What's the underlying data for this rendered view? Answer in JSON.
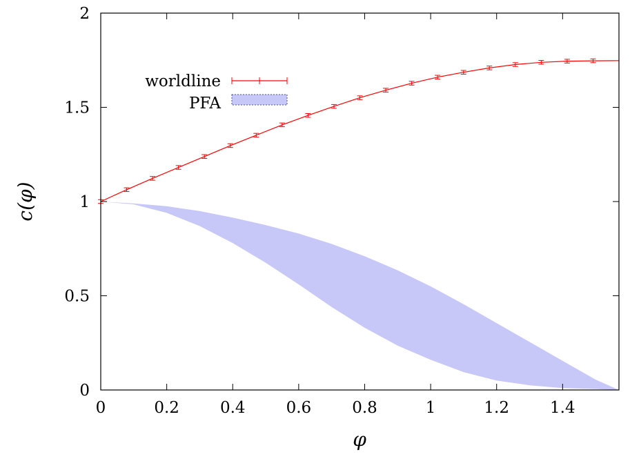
{
  "chart_data": {
    "type": "line",
    "xlabel": "φ",
    "ylabel": "c(φ)",
    "xlim": [
      0,
      1.5708
    ],
    "ylim": [
      0,
      2
    ],
    "xticks": [
      0,
      0.2,
      0.4,
      0.6,
      0.8,
      1,
      1.2,
      1.4
    ],
    "xtick_labels": [
      "0",
      "0.2",
      "0.4",
      "0.6",
      "0.8",
      "1",
      "1.2",
      "1.4"
    ],
    "yticks": [
      0,
      0.5,
      1,
      1.5,
      2
    ],
    "ytick_labels": [
      "0",
      "0.5",
      "1",
      "1.5",
      "2"
    ],
    "grid": false,
    "legend_placement": "top-left",
    "series": [
      {
        "name": "worldline",
        "kind": "line-with-errorbars",
        "color": "#ff0000",
        "x": [
          0,
          0.0785,
          0.1571,
          0.2356,
          0.3142,
          0.3927,
          0.4712,
          0.5498,
          0.6283,
          0.7069,
          0.7854,
          0.8639,
          0.9425,
          1.021,
          1.0996,
          1.1781,
          1.2566,
          1.3352,
          1.4137,
          1.4923
        ],
        "y": [
          1.0,
          1.063,
          1.123,
          1.181,
          1.239,
          1.297,
          1.352,
          1.407,
          1.457,
          1.505,
          1.551,
          1.591,
          1.628,
          1.66,
          1.686,
          1.709,
          1.727,
          1.739,
          1.745,
          1.747
        ],
        "curve_x": [
          0,
          0.0785,
          0.1571,
          0.2356,
          0.3142,
          0.3927,
          0.4712,
          0.5498,
          0.6283,
          0.7069,
          0.7854,
          0.8639,
          0.9425,
          1.021,
          1.0996,
          1.1781,
          1.2566,
          1.3352,
          1.4137,
          1.4923,
          1.5708
        ],
        "curve_y": [
          1.0,
          1.063,
          1.123,
          1.181,
          1.239,
          1.297,
          1.352,
          1.407,
          1.457,
          1.505,
          1.551,
          1.591,
          1.628,
          1.66,
          1.686,
          1.709,
          1.727,
          1.739,
          1.745,
          1.747,
          1.748
        ],
        "yerr": 0.01
      },
      {
        "name": "PFA",
        "kind": "band",
        "color": "#c8c8f8",
        "x": [
          0,
          0.1,
          0.2,
          0.3,
          0.4,
          0.5,
          0.6,
          0.7,
          0.8,
          0.9,
          1.0,
          1.1,
          1.2,
          1.3,
          1.4,
          1.5,
          1.5708
        ],
        "upper": [
          1.0,
          0.99,
          0.975,
          0.95,
          0.915,
          0.875,
          0.83,
          0.775,
          0.71,
          0.635,
          0.55,
          0.455,
          0.355,
          0.255,
          0.155,
          0.055,
          0.0
        ],
        "lower": [
          1.0,
          0.985,
          0.94,
          0.87,
          0.78,
          0.675,
          0.56,
          0.44,
          0.33,
          0.235,
          0.16,
          0.095,
          0.05,
          0.025,
          0.01,
          0.005,
          0.0
        ]
      }
    ]
  }
}
